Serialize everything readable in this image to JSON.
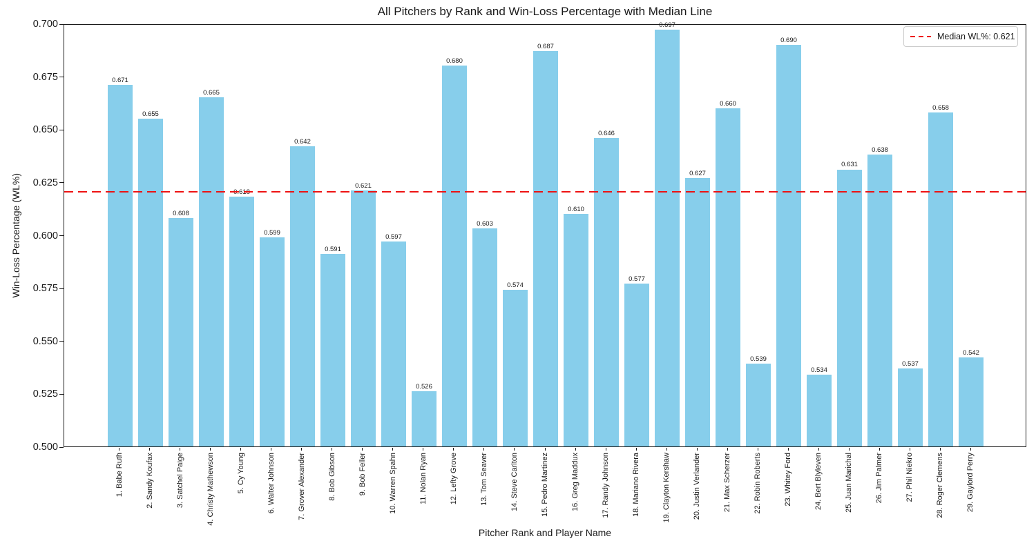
{
  "chart_data": {
    "type": "bar",
    "title": "All Pitchers by Rank and Win-Loss Percentage with Median Line",
    "xlabel": "Pitcher Rank and Player Name",
    "ylabel": "Win-Loss Percentage (WL%)",
    "categories": [
      "1. Babe Ruth",
      "2. Sandy Koufax",
      "3. Satchel Paige",
      "4. Christy Mathewson",
      "5. Cy Young",
      "6. Walter Johnson",
      "7. Grover Alexander",
      "8. Bob Gibson",
      "9. Bob Feller",
      "10. Warren Spahn",
      "11. Nolan Ryan",
      "12. Lefty Grove",
      "13. Tom Seaver",
      "14. Steve Carlton",
      "15. Pedro Martinez",
      "16. Greg Maddux",
      "17. Randy Johnson",
      "18. Mariano Rivera",
      "19. Clayton Kershaw",
      "20. Justin Verlander",
      "21. Max Scherzer",
      "22. Robin Roberts",
      "23. Whitey Ford",
      "24. Bert Blyleven",
      "25. Juan Marichal",
      "26. Jim Palmer",
      "27. Phil Niekro",
      "28. Roger Clemens",
      "29. Gaylord Perry"
    ],
    "values": [
      0.671,
      0.655,
      0.608,
      0.665,
      0.618,
      0.599,
      0.642,
      0.591,
      0.621,
      0.597,
      0.526,
      0.68,
      0.603,
      0.574,
      0.687,
      0.61,
      0.646,
      0.577,
      0.697,
      0.627,
      0.66,
      0.539,
      0.69,
      0.534,
      0.631,
      0.638,
      0.537,
      0.658,
      0.542
    ],
    "bar_label_decimals": 3,
    "bar_color": "#87CEEB",
    "median_line": {
      "value": 0.621,
      "color": "#ee1111",
      "style": "dashed",
      "label": "Median WL%: 0.621"
    },
    "ylim": [
      0.5,
      0.7
    ],
    "yticks": [
      "0.500",
      "0.525",
      "0.550",
      "0.575",
      "0.600",
      "0.625",
      "0.650",
      "0.675",
      "0.700"
    ],
    "grid": false,
    "legend_position": "upper right"
  }
}
